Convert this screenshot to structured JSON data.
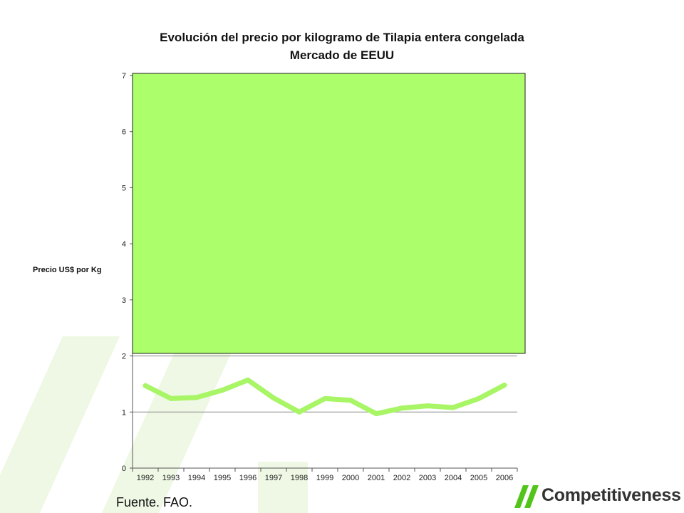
{
  "header": {
    "title_line_1": "Evolución del precio por kilogramo de Tilapia entera congelada",
    "title_line_2": "Mercado de EEUU"
  },
  "footer": {
    "source": "Fuente. FAO.",
    "logo_text": "Competitiveness"
  },
  "colors": {
    "line": "#a8f566",
    "overlay_fill": "#acff6b",
    "grid": "#8a8a8a",
    "watermark": "#eef8e4"
  },
  "chart_data": {
    "type": "line",
    "title": "Evolución del precio por kilogramo de Tilapia entera congelada Mercado de EEUU",
    "ylabel": "Precio US$ por Kg",
    "xlabel": "",
    "ylim": [
      0,
      7
    ],
    "yticks": [
      0,
      1,
      2,
      3,
      4,
      5,
      6,
      7
    ],
    "grid": true,
    "legend": "none",
    "categories": [
      "1992",
      "1993",
      "1994",
      "1995",
      "1996",
      "1997",
      "1998",
      "1999",
      "2000",
      "2001",
      "2002",
      "2003",
      "2004",
      "2005",
      "2006"
    ],
    "series": [
      {
        "values": [
          1.47,
          1.24,
          1.26,
          1.39,
          1.57,
          1.25,
          1.0,
          1.24,
          1.21,
          0.97,
          1.07,
          1.11,
          1.08,
          1.24,
          1.48
        ]
      }
    ]
  }
}
